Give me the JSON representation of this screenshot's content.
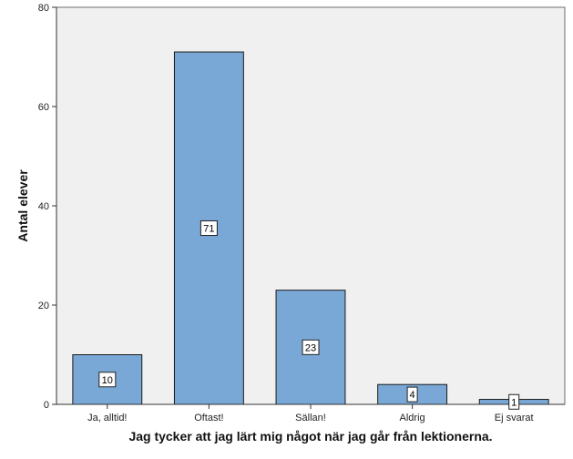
{
  "chart_data": {
    "type": "bar",
    "title": "",
    "xlabel": "Jag tycker att jag lärt mig något när jag går från lektionerna.",
    "ylabel": "Antal elever",
    "categories": [
      "Ja, alltid!",
      "Oftast!",
      "Sällan!",
      "Aldrig",
      "Ej svarat"
    ],
    "values": [
      10,
      71,
      23,
      4,
      1
    ],
    "data_labels": [
      "10",
      "71",
      "23",
      "4",
      "1"
    ],
    "ylim": [
      0,
      80
    ],
    "yticks": [
      0,
      20,
      40,
      60,
      80
    ],
    "ytick_labels": [
      "0",
      "20",
      "40",
      "60",
      "80"
    ],
    "grid": false,
    "legend": "none",
    "colors": {
      "bar_fill": "#7aa8d6",
      "bar_stroke": "#1a1a1a",
      "plot_background": "#f0f0f0",
      "label_box_fill": "#ffffff"
    }
  }
}
